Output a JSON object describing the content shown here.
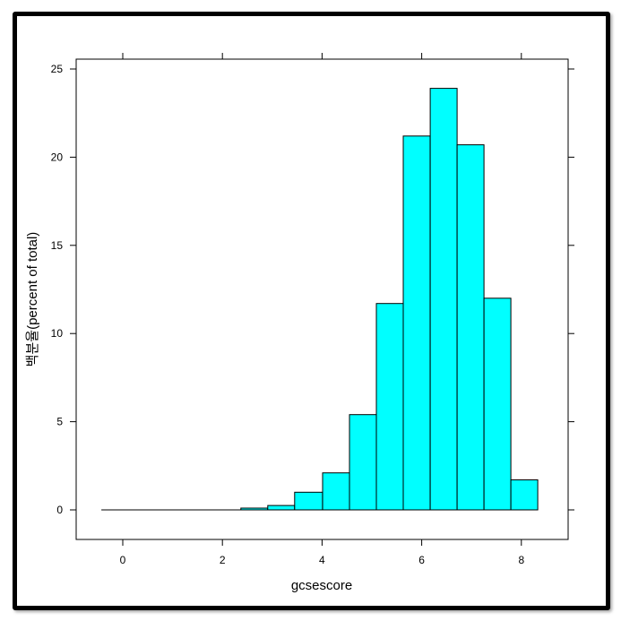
{
  "chart_data": {
    "type": "bar",
    "subtype": "histogram",
    "title": "",
    "xlabel": "gcsescore",
    "ylabel": "백분율(percent of total)",
    "xlim": [
      -0.9,
      8.9
    ],
    "ylim": [
      -1.7,
      25.5
    ],
    "x_ticks": [
      0,
      2,
      4,
      6,
      8
    ],
    "y_ticks": [
      0,
      5,
      10,
      15,
      20,
      25
    ],
    "grid": false,
    "legend": null,
    "bar_color": "#00FFFF",
    "bar_edge_color": "#000000",
    "bin_width": 0.5475,
    "bins": [
      {
        "start": -0.43,
        "end": 0.12,
        "value": 0
      },
      {
        "start": 0.12,
        "end": 0.67,
        "value": 0
      },
      {
        "start": 0.67,
        "end": 1.21,
        "value": 0
      },
      {
        "start": 1.21,
        "end": 1.76,
        "value": 0
      },
      {
        "start": 1.76,
        "end": 2.31,
        "value": 0
      },
      {
        "start": 2.37,
        "end": 2.91,
        "value": 0.1
      },
      {
        "start": 2.91,
        "end": 3.45,
        "value": 0.25
      },
      {
        "start": 3.45,
        "end": 4.01,
        "value": 1.0
      },
      {
        "start": 4.01,
        "end": 4.55,
        "value": 2.1
      },
      {
        "start": 4.55,
        "end": 5.09,
        "value": 5.4
      },
      {
        "start": 5.09,
        "end": 5.63,
        "value": 11.7
      },
      {
        "start": 5.63,
        "end": 6.17,
        "value": 21.2
      },
      {
        "start": 6.17,
        "end": 6.71,
        "value": 23.9
      },
      {
        "start": 6.71,
        "end": 7.25,
        "value": 20.7
      },
      {
        "start": 7.25,
        "end": 7.79,
        "value": 12.0
      },
      {
        "start": 7.79,
        "end": 8.33,
        "value": 1.7
      }
    ],
    "baseline_range": [
      -0.43,
      8.33
    ]
  }
}
